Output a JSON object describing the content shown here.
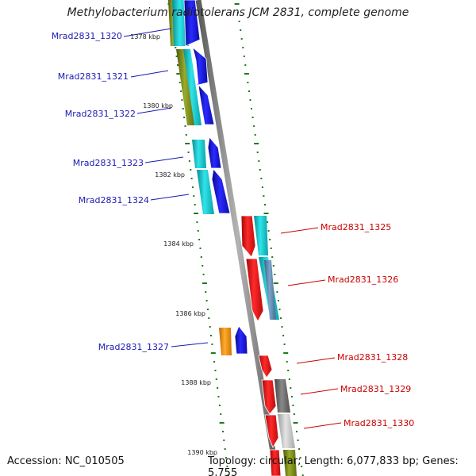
{
  "title": "Methylobacterium radiotolerans JCM 2831, complete genome",
  "accession": "Accession: NC_010505",
  "summary": "Topology: circular; Length: 6,077,833 bp; Genes: 5,755",
  "colors": {
    "blue": "#1010e8",
    "cyan": "#12c9cf",
    "olive": "#7f8f1d",
    "red": "#ea0e0e",
    "orange": "#ff9912",
    "steel": "#5f8db6",
    "darkgray": "#6a6a6a",
    "lightgray": "#c6c6c6",
    "ticks": "#207a1d",
    "backbone": "#8a8a8a"
  },
  "scale_ticks": [
    "1378 kbp",
    "1380 kbp",
    "1382 kbp",
    "1384 kbp",
    "1386 kbp",
    "1388 kbp",
    "1390 kbp"
  ],
  "genes": [
    {
      "label": "Mrad2831_1320",
      "strand": "forward",
      "color_key": "blue"
    },
    {
      "label": "Mrad2831_1321",
      "strand": "forward",
      "color_key": "blue"
    },
    {
      "label": "Mrad2831_1322",
      "strand": "forward",
      "color_key": "blue"
    },
    {
      "label": "Mrad2831_1323",
      "strand": "forward",
      "color_key": "blue"
    },
    {
      "label": "Mrad2831_1324",
      "strand": "forward",
      "color_key": "blue"
    },
    {
      "label": "Mrad2831_1325",
      "strand": "reverse",
      "color_key": "red"
    },
    {
      "label": "Mrad2831_1326",
      "strand": "reverse",
      "color_key": "red"
    },
    {
      "label": "Mrad2831_1327",
      "strand": "forward",
      "color_key": "blue"
    },
    {
      "label": "Mrad2831_1328",
      "strand": "reverse",
      "color_key": "red"
    },
    {
      "label": "Mrad2831_1329",
      "strand": "reverse",
      "color_key": "red"
    },
    {
      "label": "Mrad2831_1330",
      "strand": "reverse",
      "color_key": "red"
    }
  ]
}
